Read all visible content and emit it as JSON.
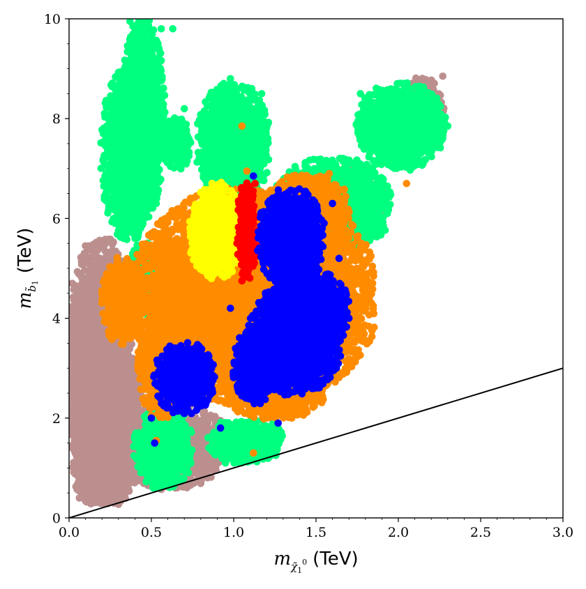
{
  "chart_data": {
    "type": "scatter",
    "xlabel": "m_{χ̃₁⁰} (TeV)",
    "ylabel": "m_{b̃₁} (TeV)",
    "xlabel_parts": {
      "symbol": "m",
      "subscript": "χ̃",
      "sub_index": "1",
      "sub_sup": "0",
      "unit": "(TeV)"
    },
    "ylabel_parts": {
      "symbol": "m",
      "subscript": "b̃",
      "sub_index": "1",
      "unit": "(TeV)"
    },
    "xlim": [
      0.0,
      3.0
    ],
    "ylim": [
      0,
      10
    ],
    "x_ticks": [
      "0.0",
      "0.5",
      "1.0",
      "1.5",
      "2.0",
      "2.5",
      "3.0"
    ],
    "x_tick_values": [
      0.0,
      0.5,
      1.0,
      1.5,
      2.0,
      2.5,
      3.0
    ],
    "y_ticks": [
      "0",
      "2",
      "4",
      "6",
      "8",
      "10"
    ],
    "y_tick_values": [
      0,
      2,
      4,
      6,
      8,
      10
    ],
    "grid": false,
    "legend": "none",
    "reference_line": {
      "x": [
        0.0,
        3.0
      ],
      "y": [
        0.0,
        3.0
      ],
      "color": "#000000"
    },
    "series": [
      {
        "color": "#bc8f8f",
        "regions": [
          {
            "x": [
              0.0,
              0.38
            ],
            "y": [
              0.3,
              5.6
            ]
          },
          {
            "x": [
              0.0,
              0.22
            ],
            "y": [
              0.3,
              4.8
            ]
          },
          {
            "x": [
              0.05,
              0.45
            ],
            "y": [
              0.3,
              3.5
            ]
          },
          {
            "x": [
              0.3,
              0.95
            ],
            "y": [
              0.6,
              2.3
            ]
          },
          {
            "x": [
              2.0,
              2.28
            ],
            "y": [
              7.6,
              8.8
            ]
          },
          {
            "x": [
              1.5,
              1.9
            ],
            "y": [
              5.5,
              7.0
            ]
          }
        ],
        "points": [
          [
            0.12,
            5.45
          ],
          [
            0.2,
            5.55
          ],
          [
            0.02,
            4.7
          ],
          [
            2.27,
            8.85
          ],
          [
            0.92,
            1.95
          ],
          [
            1.27,
            2.05
          ],
          [
            1.24,
            1.92
          ],
          [
            0.8,
            0.7
          ]
        ]
      },
      {
        "color": "#00ff7f",
        "regions": [
          {
            "x": [
              0.32,
              0.58
            ],
            "y": [
              6.0,
              10.0
            ]
          },
          {
            "x": [
              0.2,
              0.52
            ],
            "y": [
              5.6,
              9.0
            ]
          },
          {
            "x": [
              0.78,
              1.22
            ],
            "y": [
              6.3,
              8.7
            ]
          },
          {
            "x": [
              1.25,
              1.95
            ],
            "y": [
              5.3,
              7.2
            ]
          },
          {
            "x": [
              1.75,
              2.28
            ],
            "y": [
              7.0,
              8.7
            ]
          },
          {
            "x": [
              0.4,
              0.75
            ],
            "y": [
              0.6,
              2.2
            ]
          },
          {
            "x": [
              0.85,
              1.3
            ],
            "y": [
              1.1,
              2.0
            ]
          },
          {
            "x": [
              0.35,
              0.55
            ],
            "y": [
              4.0,
              5.5
            ]
          },
          {
            "x": [
              0.55,
              0.75
            ],
            "y": [
              7.0,
              8.0
            ]
          }
        ],
        "points": [
          [
            0.37,
            9.95
          ],
          [
            0.56,
            9.8
          ],
          [
            0.63,
            9.8
          ],
          [
            0.98,
            8.8
          ],
          [
            1.17,
            8.5
          ],
          [
            1.77,
            8.5
          ],
          [
            2.3,
            7.85
          ],
          [
            1.09,
            1.3
          ],
          [
            0.95,
            1.1
          ],
          [
            0.51,
            0.6
          ],
          [
            0.7,
            8.2
          ]
        ]
      },
      {
        "color": "#ff8c00",
        "regions": [
          {
            "x": [
              0.4,
              1.85
            ],
            "y": [
              2.3,
              6.6
            ]
          },
          {
            "x": [
              0.42,
              0.7
            ],
            "y": [
              2.0,
              4.5
            ]
          },
          {
            "x": [
              1.2,
              1.7
            ],
            "y": [
              5.5,
              6.9
            ]
          },
          {
            "x": [
              0.95,
              1.55
            ],
            "y": [
              2.0,
              3.0
            ]
          },
          {
            "x": [
              0.2,
              0.45
            ],
            "y": [
              3.5,
              5.2
            ]
          }
        ],
        "points": [
          [
            0.53,
            1.55
          ],
          [
            1.12,
            1.3
          ],
          [
            1.08,
            6.95
          ],
          [
            2.05,
            6.7
          ],
          [
            1.58,
            6.9
          ],
          [
            0.5,
            5.7
          ],
          [
            1.05,
            7.85
          ],
          [
            0.27,
            4.7
          ]
        ]
      },
      {
        "color": "#ffff00",
        "regions": [
          {
            "x": [
              0.75,
              1.05
            ],
            "y": [
              4.8,
              6.7
            ]
          },
          {
            "x": [
              0.73,
              0.9
            ],
            "y": [
              5.0,
              6.3
            ]
          }
        ],
        "points": [
          [
            1.23,
            5.75
          ],
          [
            1.23,
            5.35
          ]
        ]
      },
      {
        "color": "#ff0000",
        "regions": [
          {
            "x": [
              1.02,
              1.14
            ],
            "y": [
              4.8,
              6.7
            ]
          }
        ],
        "points": [
          [
            1.13,
            6.7
          ],
          [
            1.05,
            4.75
          ]
        ]
      },
      {
        "color": "#0000ff",
        "regions": [
          {
            "x": [
              1.15,
              1.55
            ],
            "y": [
              4.6,
              6.6
            ]
          },
          {
            "x": [
              1.22,
              1.48
            ],
            "y": [
              5.0,
              6.3
            ]
          },
          {
            "x": [
              0.52,
              0.88
            ],
            "y": [
              2.1,
              3.5
            ]
          },
          {
            "x": [
              1.0,
              1.25
            ],
            "y": [
              2.3,
              3.8
            ]
          },
          {
            "x": [
              1.1,
              1.65
            ],
            "y": [
              2.5,
              4.7
            ]
          },
          {
            "x": [
              1.3,
              1.7
            ],
            "y": [
              3.4,
              4.9
            ]
          }
        ],
        "points": [
          [
            1.12,
            6.85
          ],
          [
            0.98,
            4.2
          ],
          [
            1.38,
            2.9
          ],
          [
            0.92,
            1.8
          ],
          [
            0.52,
            1.5
          ],
          [
            0.5,
            2.0
          ],
          [
            1.64,
            5.2
          ],
          [
            1.6,
            6.3
          ],
          [
            1.27,
            1.9
          ],
          [
            1.7,
            4.0
          ]
        ]
      }
    ]
  }
}
